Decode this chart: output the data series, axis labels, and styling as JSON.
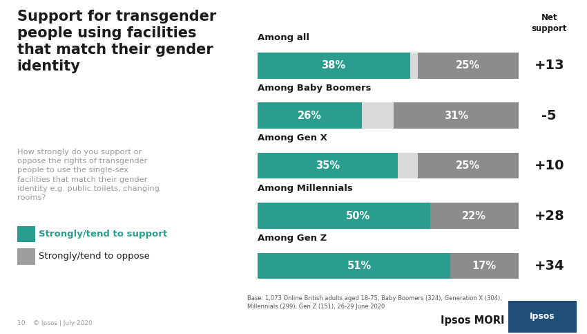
{
  "title": "Support for transgender\npeople using facilities\nthat match their gender\nidentity",
  "subtitle": "How strongly do you support or\noppose the rights of transgender\npeople to use the single-sex\nfacilities that match their gender\nidentity e.g. public toilets, changing\nrooms?",
  "legend_support": "Strongly/tend to support",
  "legend_oppose": "Strongly/tend to oppose",
  "categories": [
    "Among all",
    "Among Baby Boomers",
    "Among Gen X",
    "Among Millennials",
    "Among Gen Z"
  ],
  "support_values": [
    38,
    26,
    35,
    50,
    51
  ],
  "oppose_values": [
    25,
    31,
    25,
    22,
    17
  ],
  "net_support": [
    "+13",
    "-5",
    "+10",
    "+28",
    "+34"
  ],
  "support_color": "#2a9d8f",
  "oppose_color": "#8c8c8c",
  "light_gap_color": "#d9d9d9",
  "left_bg_color": "#ffffff",
  "chart_bg_color": "#efefef",
  "net_support_header": "Net\nsupport",
  "base_text": "Base: 1,073 Online British adults aged 18-75, Baby Boomers (324), Generation X (304),\nMillennials (299), Gen Z (151), 26-29 June 2020",
  "footer_left": "10    © Ipsos | July 2020"
}
